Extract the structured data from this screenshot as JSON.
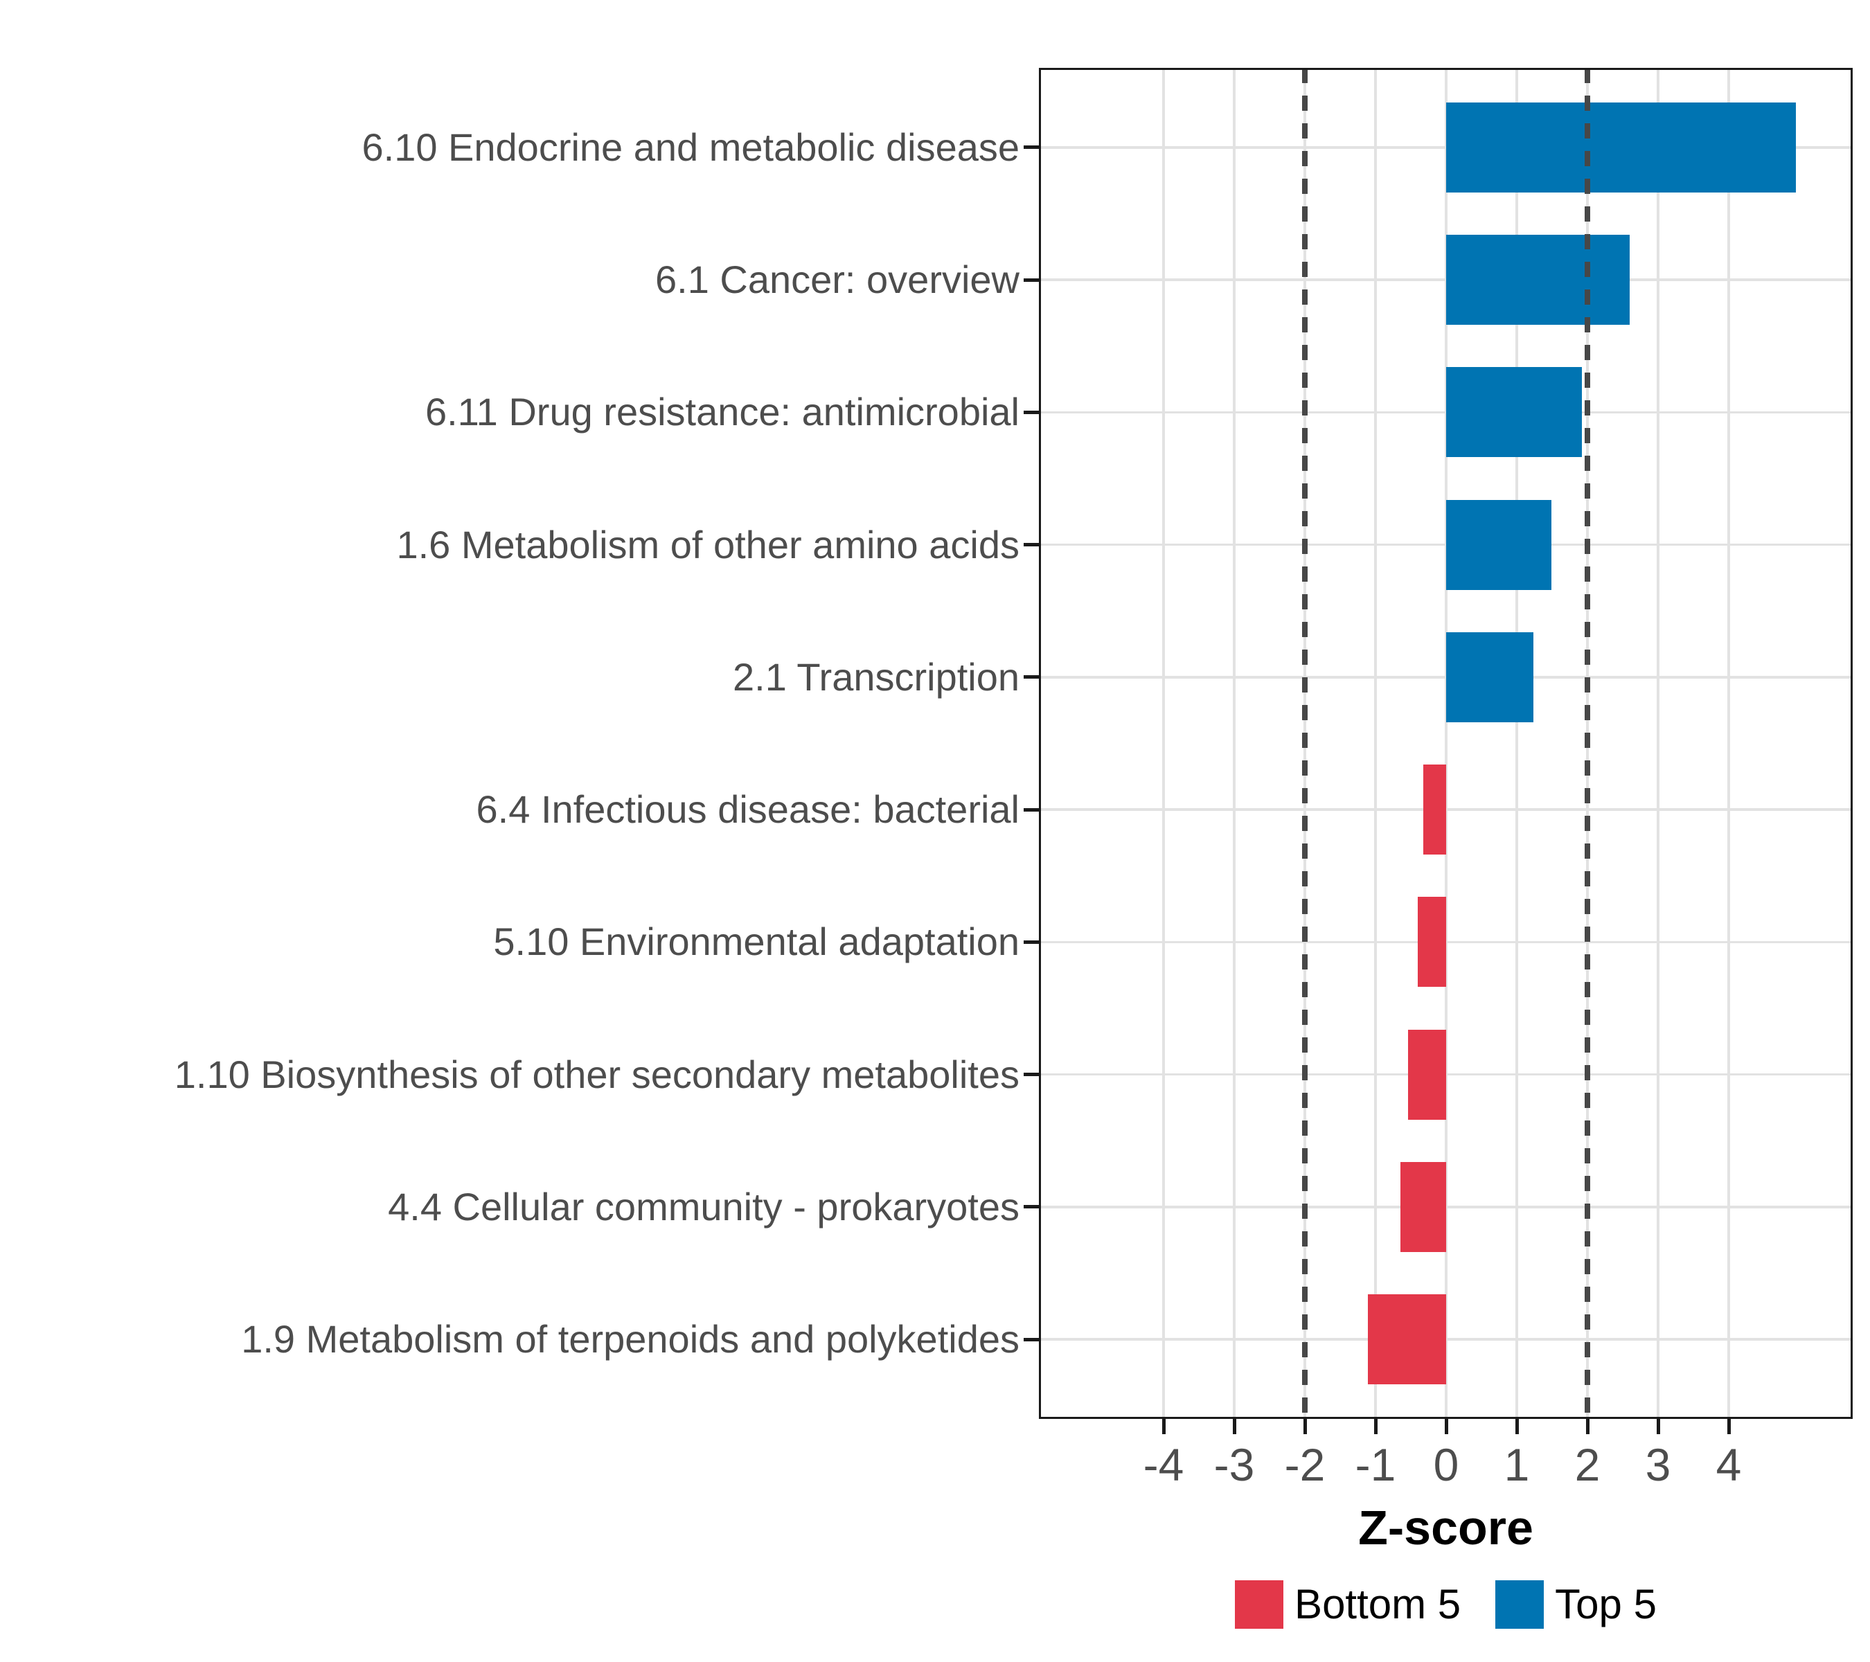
{
  "chart_data": {
    "type": "bar",
    "orientation": "horizontal",
    "title": "",
    "xlabel": "Z-score",
    "ylabel": "",
    "categories": [
      "6.10 Endocrine and metabolic disease",
      "6.1 Cancer: overview",
      "6.11 Drug resistance: antimicrobial",
      "1.6 Metabolism of other amino acids",
      "2.1 Transcription",
      "6.4 Infectious disease: bacterial",
      "5.10 Environmental adaptation",
      "1.10 Biosynthesis of other secondary metabolites",
      "4.4 Cellular community - prokaryotes",
      "1.9 Metabolism of terpenoids and polyketides"
    ],
    "values": [
      4.95,
      2.6,
      1.92,
      1.49,
      1.24,
      -0.32,
      -0.4,
      -0.54,
      -0.65,
      -1.11
    ],
    "groups": [
      "Top 5",
      "Top 5",
      "Top 5",
      "Top 5",
      "Top 5",
      "Bottom 5",
      "Bottom 5",
      "Bottom 5",
      "Bottom 5",
      "Bottom 5"
    ],
    "x_ticks": [
      -4,
      -3,
      -2,
      -1,
      0,
      1,
      2,
      3,
      4
    ],
    "x_tick_labels": [
      "-4",
      "-3",
      "-2",
      "-1",
      "0",
      "1",
      "2",
      "3",
      "4"
    ],
    "xlim": [
      -5.76,
      5.76
    ],
    "reference_lines": [
      -2,
      2
    ],
    "grid": true,
    "legend_position": "bottom",
    "legend": [
      {
        "label": "Bottom 5",
        "color": "#E33749"
      },
      {
        "label": "Top 5",
        "color": "#0074B2"
      }
    ],
    "colors": {
      "top5": "#0074B2",
      "bottom5": "#E33749",
      "gridline": "#E2E2E2",
      "reference_line": "#474747",
      "axis_text": "#4D4D4D",
      "panel_border": "#1A1A1A"
    }
  }
}
